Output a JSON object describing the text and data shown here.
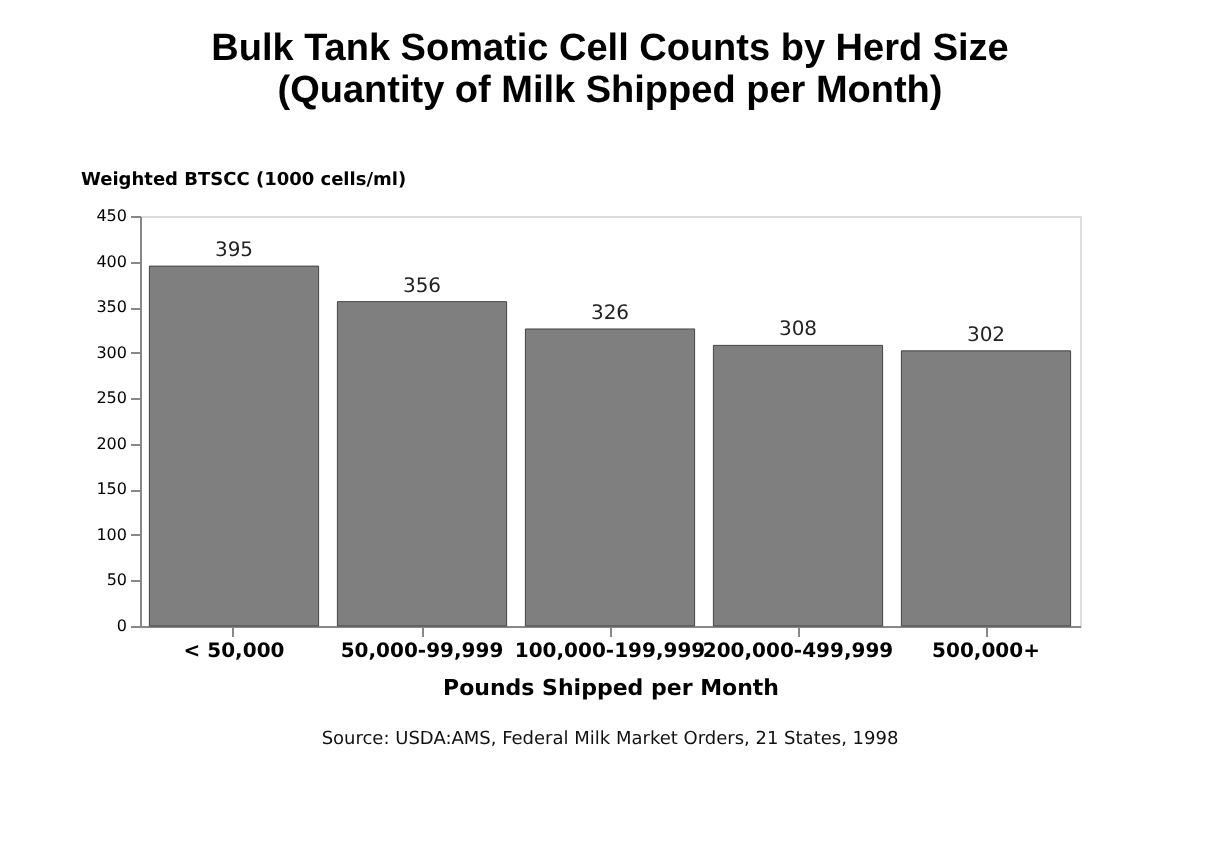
{
  "chart_data": {
    "type": "bar",
    "title": "Bulk Tank Somatic Cell Counts by Herd Size (Quantity of Milk Shipped per Month)",
    "ylabel": "Weighted BTSCC (1000 cells/ml)",
    "xlabel": "Pounds Shipped per Month",
    "annotations": [
      "Source: USDA:AMS, Federal Milk Market Orders, 21 States, 1998"
    ],
    "categories": [
      "< 50,000",
      "50,000-99,999",
      "100,000-199,999",
      "200,000-499,999",
      "500,000+"
    ],
    "values": [
      395,
      356,
      326,
      308,
      302
    ],
    "color": "#7f7f7f",
    "ylim": [
      0,
      450
    ],
    "yticks": [
      0,
      50,
      100,
      150,
      200,
      250,
      300,
      350,
      400,
      450
    ],
    "data_labels": true,
    "grid": false
  }
}
